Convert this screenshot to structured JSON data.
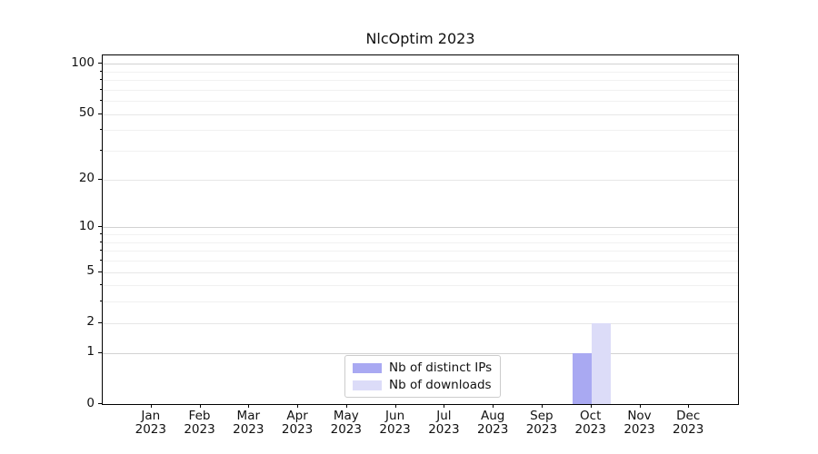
{
  "chart_data": {
    "type": "bar",
    "title": "NlcOptim 2023",
    "categories": [
      "Jan 2023",
      "Feb 2023",
      "Mar 2023",
      "Apr 2023",
      "May 2023",
      "Jun 2023",
      "Jul 2023",
      "Aug 2023",
      "Sep 2023",
      "Oct 2023",
      "Nov 2023",
      "Dec 2023"
    ],
    "months": [
      "Jan",
      "Feb",
      "Mar",
      "Apr",
      "May",
      "Jun",
      "Jul",
      "Aug",
      "Sep",
      "Oct",
      "Nov",
      "Dec"
    ],
    "year_label": "2023",
    "series": [
      {
        "name": "Nb of distinct IPs",
        "color": "#a9a9f2",
        "values": [
          0,
          0,
          0,
          0,
          0,
          0,
          0,
          0,
          0,
          1,
          0,
          0
        ]
      },
      {
        "name": "Nb of downloads",
        "color": "#dcdcf8",
        "values": [
          0,
          0,
          0,
          0,
          0,
          0,
          0,
          0,
          0,
          2,
          0,
          0
        ]
      }
    ],
    "xlabel": "",
    "ylabel": "",
    "y_axis": {
      "scale": "log1p",
      "ylim": [
        0,
        112
      ],
      "ticks_labeled": [
        0,
        1,
        2,
        5,
        10,
        20,
        50,
        100
      ],
      "ticks_emphasized": [
        1,
        10,
        100
      ],
      "ticks_minor": [
        3,
        4,
        6,
        7,
        8,
        9,
        30,
        40,
        60,
        70,
        80,
        90
      ]
    },
    "grid": true,
    "legend_position": "lower center"
  },
  "colors": {
    "grid_emphasized": "#d2d2d2",
    "grid_labeled": "#e7e7e7",
    "grid_minor": "#f1f1f1",
    "axis": "#000000",
    "text": "#111111",
    "background": "#ffffff"
  }
}
